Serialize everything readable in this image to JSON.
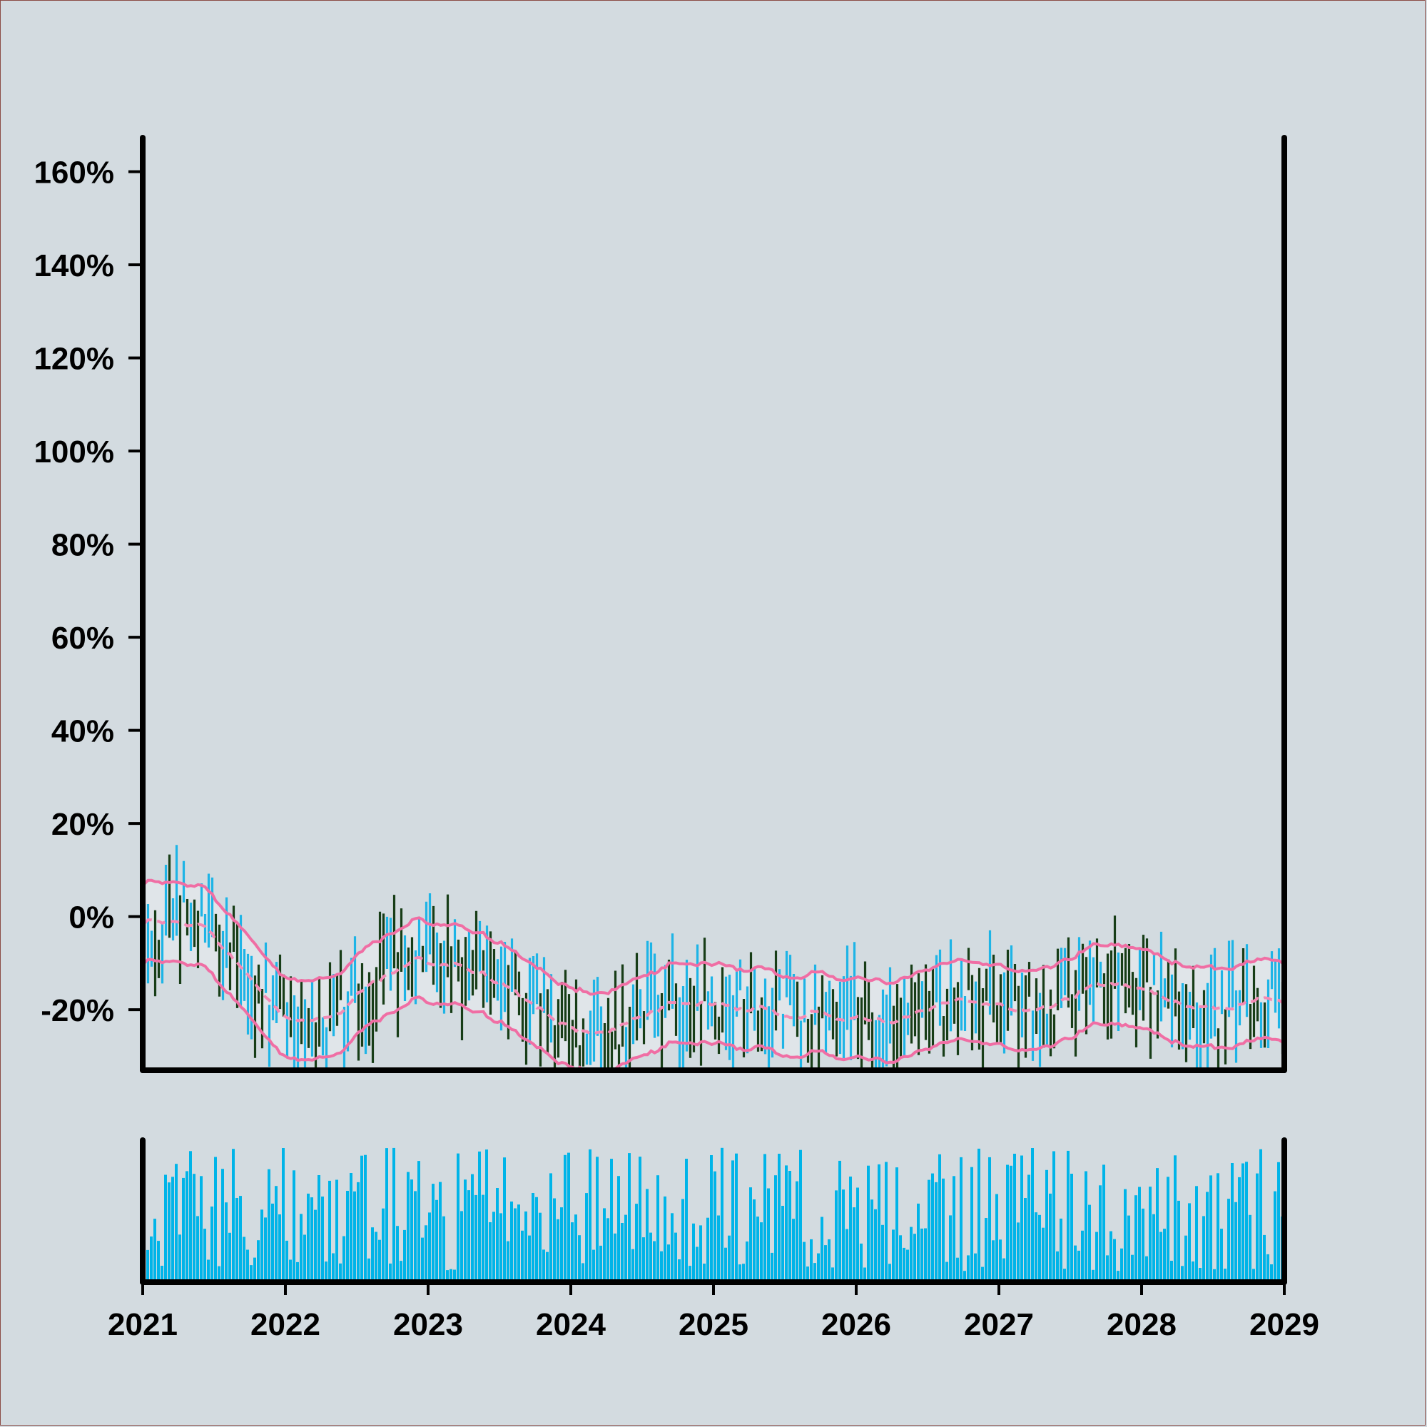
{
  "chart_data": {
    "type": "ohlc",
    "title": "",
    "xlabel": "",
    "ylabel": "",
    "x_range": [
      "2021-01-01",
      "2029-01-01"
    ],
    "x_ticks": [
      "2021",
      "2022",
      "2023",
      "2024",
      "2025",
      "2026",
      "2027",
      "2028",
      "2029"
    ],
    "ylim": [
      -33,
      167
    ],
    "y_ticks": [
      "-20%",
      "0%",
      "20%",
      "40%",
      "60%",
      "80%",
      "100%",
      "120%",
      "140%",
      "160%"
    ],
    "y_tick_values": [
      -20,
      0,
      20,
      40,
      60,
      80,
      100,
      120,
      140,
      160
    ],
    "bar_count": 320,
    "price_percent_anchors": {
      "year": [
        2021.0,
        2021.15,
        2021.35,
        2021.6,
        2021.85,
        2022.2,
        2022.5,
        2022.8,
        2023.0,
        2023.3,
        2023.6,
        2023.85,
        2024.1,
        2024.35,
        2024.6,
        2024.9,
        2025.2,
        2025.45,
        2025.75,
        2026.0,
        2026.3,
        2026.6,
        2026.85,
        2027.1,
        2027.35,
        2027.6,
        2027.75,
        2028.0,
        2028.2,
        2028.45,
        2028.7,
        2029.0
      ],
      "percent": [
        -6,
        -2,
        2,
        -8,
        -18,
        -24,
        -18,
        -10,
        -7,
        -12,
        -16,
        -20,
        -26,
        -24,
        -20,
        -18,
        -19,
        -19,
        -23,
        -21,
        -20,
        -19,
        -17,
        -20,
        -20,
        -16,
        -11,
        -15,
        -18,
        -23,
        -19,
        -18
      ]
    },
    "up_color": "#1eb4e6",
    "down_color": "#173d17",
    "bollinger": {
      "color": "#f06ea4",
      "middle_style": "dashed",
      "band_style": "solid",
      "band_width_percent": 8.5
    },
    "volume": {
      "color": "#00b4e8",
      "note": "volume panel without axis labels"
    }
  }
}
